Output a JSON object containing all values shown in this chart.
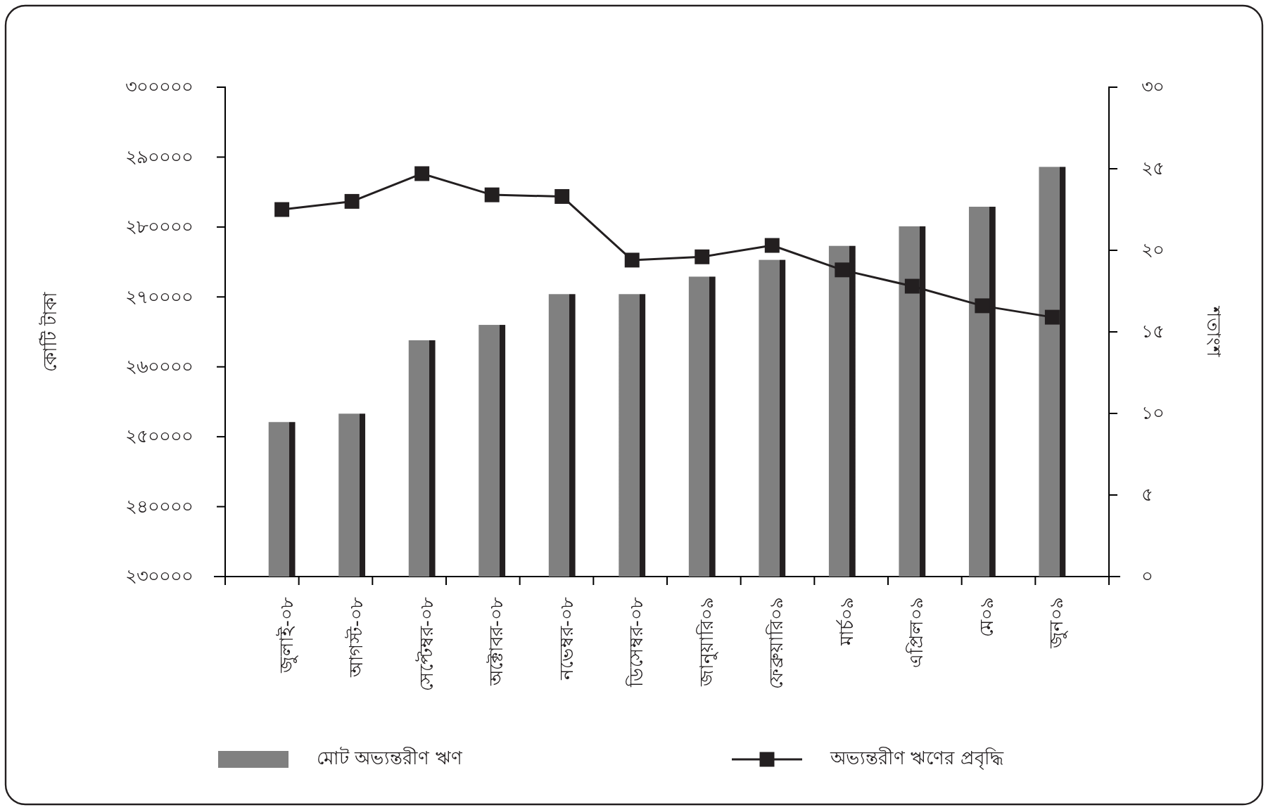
{
  "chart_data": {
    "type": "bar",
    "categories": [
      "জুলাই-০৮",
      "আগস্ট-০৮",
      "সেপ্টেম্বর-০৮",
      "অক্টোবর-০৮",
      "নভেম্বর-০৮",
      "ডিসেম্বর-০৮",
      "জানুয়ারি০৯",
      "ফেব্রুয়ারি০৯",
      "মার্চ০৯",
      "এপ্রিল০৯",
      "মে০৯",
      "জুন০৯"
    ],
    "series": [
      {
        "name": "মোট অভ্যন্তরীণ ঋণ",
        "color": "#808080",
        "values": [
          252100,
          253300,
          263800,
          266000,
          270400,
          270400,
          272900,
          275300,
          277300,
          280100,
          282900,
          288600
        ]
      },
      {
        "name": "অভ্যন্তরীণ ঋণের প্রবৃদ্ধি",
        "type": "line",
        "axis": "y2",
        "color": "#231f20",
        "marker": "square",
        "values": [
          22.5,
          23.0,
          24.7,
          23.4,
          23.3,
          19.4,
          19.6,
          20.3,
          18.8,
          17.8,
          16.6,
          15.9
        ]
      }
    ],
    "ylabel": "কোটি টাকা",
    "y2label": "শতাংশ",
    "ylim": [
      230000,
      300000
    ],
    "yticks": [
      {
        "value": 230000,
        "label": "২৩০০০০"
      },
      {
        "value": 240000,
        "label": "২৪০০০০"
      },
      {
        "value": 250000,
        "label": "২৫০০০০"
      },
      {
        "value": 260000,
        "label": "২৬০০০০"
      },
      {
        "value": 270000,
        "label": "২৭০০০০"
      },
      {
        "value": 280000,
        "label": "২৮০০০০"
      },
      {
        "value": 290000,
        "label": "২৯০০০০"
      },
      {
        "value": 300000,
        "label": "৩০০০০০"
      }
    ],
    "y2lim": [
      0,
      30
    ],
    "y2ticks": [
      {
        "value": 0,
        "label": "০"
      },
      {
        "value": 5,
        "label": "৫"
      },
      {
        "value": 10,
        "label": "১০"
      },
      {
        "value": 15,
        "label": "১৫"
      },
      {
        "value": 20,
        "label": "২০"
      },
      {
        "value": 25,
        "label": "২৫"
      },
      {
        "value": 30,
        "label": "৩০"
      }
    ],
    "legend": "bottom",
    "grid": false
  }
}
